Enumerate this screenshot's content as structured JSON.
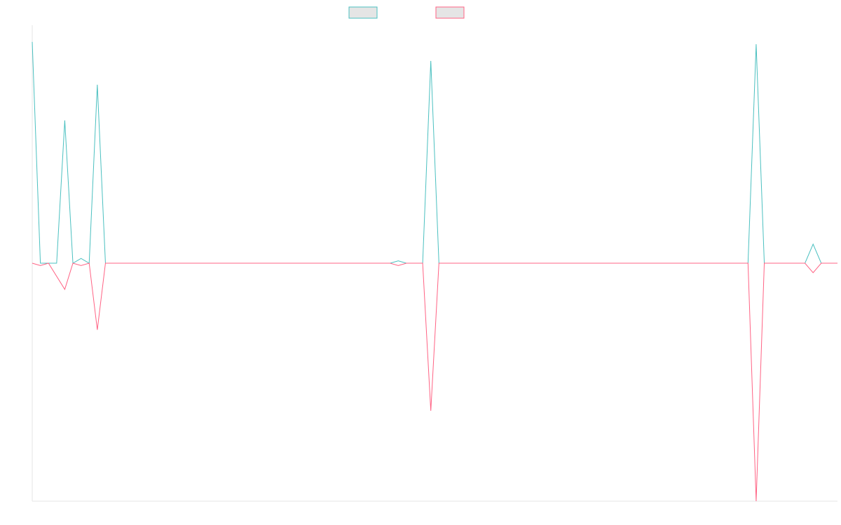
{
  "chart_data": {
    "type": "line",
    "title": "",
    "xlabel": "",
    "ylabel": "",
    "grid": false,
    "legend_position": "top-center",
    "point_count": 100,
    "ylim": [
      -1,
      1
    ],
    "series": [
      {
        "name": "",
        "color": "#4bc0c0",
        "legend_fill": "#e5e5e5",
        "values": [
          {
            "x": 0,
            "y": 0.93
          },
          {
            "x": 1,
            "y": 0.0
          },
          {
            "x": 2,
            "y": 0.0
          },
          {
            "x": 3,
            "y": 0.0
          },
          {
            "x": 4,
            "y": 0.6
          },
          {
            "x": 5,
            "y": 0.0
          },
          {
            "x": 6,
            "y": 0.02
          },
          {
            "x": 7,
            "y": 0.0
          },
          {
            "x": 8,
            "y": 0.75
          },
          {
            "x": 9,
            "y": 0.0
          },
          {
            "x": 44,
            "y": 0.0
          },
          {
            "x": 45,
            "y": 0.01
          },
          {
            "x": 46,
            "y": 0.0
          },
          {
            "x": 48,
            "y": 0.0
          },
          {
            "x": 49,
            "y": 0.85
          },
          {
            "x": 50,
            "y": 0.0
          },
          {
            "x": 87,
            "y": 0.0
          },
          {
            "x": 88,
            "y": 0.0
          },
          {
            "x": 89,
            "y": 0.92
          },
          {
            "x": 90,
            "y": 0.0
          },
          {
            "x": 95,
            "y": 0.0
          },
          {
            "x": 96,
            "y": 0.08
          },
          {
            "x": 97,
            "y": 0.0
          },
          {
            "x": 99,
            "y": 0.0
          }
        ]
      },
      {
        "name": "",
        "color": "#ff6384",
        "legend_fill": "#e5e5e5",
        "values": [
          {
            "x": 0,
            "y": 0.0
          },
          {
            "x": 1,
            "y": -0.01
          },
          {
            "x": 2,
            "y": 0.0
          },
          {
            "x": 4,
            "y": -0.11
          },
          {
            "x": 5,
            "y": 0.0
          },
          {
            "x": 6,
            "y": -0.01
          },
          {
            "x": 7,
            "y": 0.0
          },
          {
            "x": 8,
            "y": -0.28
          },
          {
            "x": 9,
            "y": 0.0
          },
          {
            "x": 44,
            "y": 0.0
          },
          {
            "x": 45,
            "y": -0.01
          },
          {
            "x": 46,
            "y": 0.0
          },
          {
            "x": 48,
            "y": 0.0
          },
          {
            "x": 49,
            "y": -0.62
          },
          {
            "x": 50,
            "y": 0.0
          },
          {
            "x": 87,
            "y": 0.0
          },
          {
            "x": 88,
            "y": 0.0
          },
          {
            "x": 89,
            "y": -1.0
          },
          {
            "x": 90,
            "y": 0.0
          },
          {
            "x": 95,
            "y": 0.0
          },
          {
            "x": 96,
            "y": -0.04
          },
          {
            "x": 97,
            "y": 0.0
          },
          {
            "x": 99,
            "y": 0.0
          }
        ]
      }
    ]
  }
}
